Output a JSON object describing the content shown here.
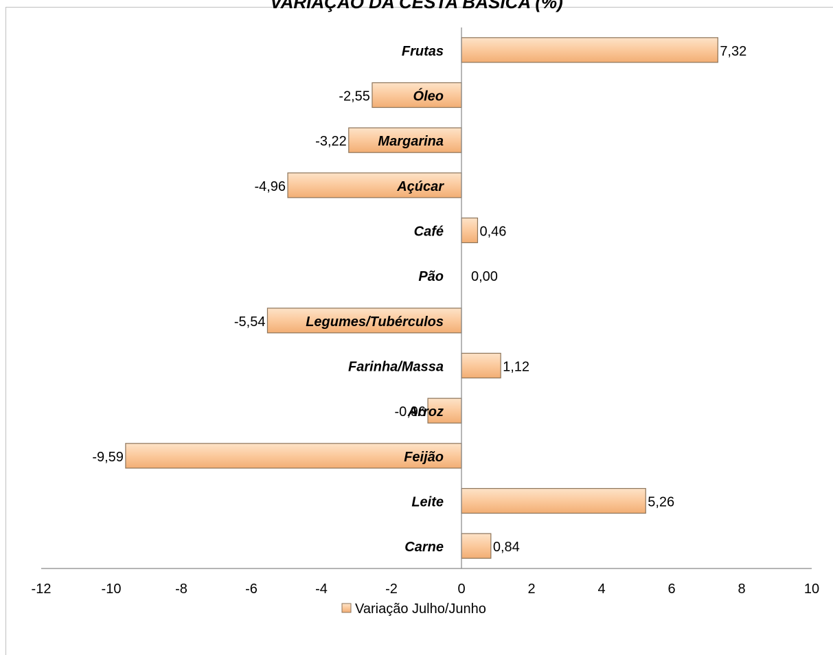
{
  "chart_data": {
    "type": "bar",
    "orientation": "horizontal",
    "title": "VARIAÇÃO DA CESTA BÁSICA (%)",
    "categories": [
      "Carne",
      "Leite",
      "Feijão",
      "Arroz",
      "Farinha/Massa",
      "Legumes/Tubérculos",
      "Pão",
      "Café",
      "Açúcar",
      "Margarina",
      "Óleo",
      "Frutas"
    ],
    "series": [
      {
        "name": "Variação Julho/Junho",
        "values": [
          0.84,
          5.26,
          -9.59,
          -0.96,
          1.12,
          -5.54,
          0.0,
          0.46,
          -4.96,
          -3.22,
          -2.55,
          7.32
        ],
        "labels": [
          "0,84",
          "5,26",
          "-9,59",
          "-0,96",
          "1,12",
          "-5,54",
          "0,00",
          "0,46",
          "-4,96",
          "-3,22",
          "-2,55",
          "7,32"
        ]
      }
    ],
    "xlim": [
      -12,
      10
    ],
    "xticks": [
      "-12",
      "-10",
      "-8",
      "-6",
      "-4",
      "-2",
      "0",
      "2",
      "4",
      "6",
      "8",
      "10"
    ],
    "legend": "bottom",
    "grid": false,
    "bar_color": "#fbc99c"
  }
}
